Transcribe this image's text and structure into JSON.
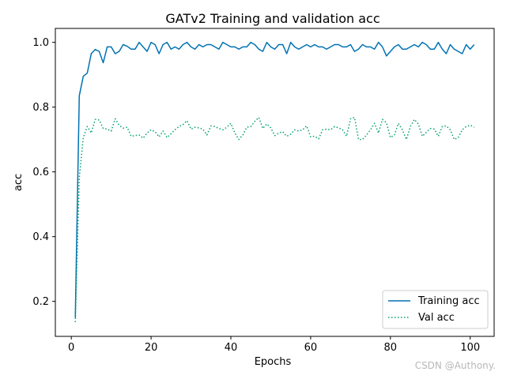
{
  "chart_data": {
    "type": "line",
    "title": "GATv2 Training and validation acc",
    "xlabel": "Epochs",
    "ylabel": "acc",
    "xlim": [
      -4,
      106
    ],
    "ylim": [
      0.092,
      1.043
    ],
    "xticks": [
      0,
      20,
      40,
      60,
      80,
      100
    ],
    "xtick_labels": [
      "0",
      "20",
      "40",
      "60",
      "80",
      "100"
    ],
    "yticks": [
      0.2,
      0.4,
      0.6,
      0.8,
      1.0
    ],
    "ytick_labels": [
      "0.2",
      "0.4",
      "0.6",
      "0.8",
      "1.0"
    ],
    "grid": false,
    "legend_position": "lower-right",
    "x_start": 1,
    "series": [
      {
        "name": "Training acc",
        "color": "#0072B2",
        "style": "solid",
        "values": [
          0.15,
          0.835,
          0.895,
          0.905,
          0.965,
          0.978,
          0.972,
          0.937,
          0.986,
          0.986,
          0.965,
          0.972,
          0.993,
          0.988,
          0.979,
          0.979,
          1.0,
          0.986,
          0.972,
          1.0,
          0.993,
          0.965,
          0.993,
          1.0,
          0.979,
          0.986,
          0.979,
          0.993,
          1.0,
          0.986,
          0.979,
          0.993,
          0.986,
          0.993,
          0.993,
          0.986,
          0.979,
          1.0,
          0.993,
          0.986,
          0.986,
          0.979,
          0.986,
          0.986,
          1.0,
          0.993,
          0.979,
          0.972,
          1.0,
          0.986,
          0.979,
          0.993,
          0.993,
          0.965,
          1.0,
          0.986,
          0.979,
          0.986,
          0.993,
          0.986,
          0.993,
          0.986,
          0.986,
          0.979,
          0.986,
          0.993,
          0.993,
          0.986,
          0.986,
          0.993,
          0.972,
          0.979,
          0.993,
          0.986,
          0.986,
          0.979,
          1.0,
          0.986,
          0.958,
          0.972,
          0.986,
          0.993,
          0.979,
          0.979,
          0.986,
          0.993,
          0.986,
          1.0,
          0.993,
          0.979,
          0.979,
          1.0,
          0.979,
          0.965,
          0.993,
          0.979,
          0.972,
          0.965,
          0.993,
          0.979,
          0.993
        ]
      },
      {
        "name": "Val acc",
        "color": "#009E73",
        "style": "dotted",
        "values": [
          0.136,
          0.58,
          0.706,
          0.74,
          0.72,
          0.762,
          0.76,
          0.734,
          0.732,
          0.726,
          0.764,
          0.744,
          0.735,
          0.738,
          0.71,
          0.712,
          0.714,
          0.704,
          0.72,
          0.73,
          0.724,
          0.708,
          0.726,
          0.706,
          0.718,
          0.73,
          0.74,
          0.746,
          0.758,
          0.732,
          0.738,
          0.736,
          0.732,
          0.714,
          0.742,
          0.74,
          0.734,
          0.73,
          0.738,
          0.75,
          0.72,
          0.7,
          0.714,
          0.738,
          0.74,
          0.756,
          0.768,
          0.734,
          0.748,
          0.736,
          0.712,
          0.72,
          0.724,
          0.71,
          0.716,
          0.73,
          0.726,
          0.73,
          0.742,
          0.708,
          0.71,
          0.702,
          0.73,
          0.732,
          0.73,
          0.74,
          0.736,
          0.73,
          0.71,
          0.764,
          0.768,
          0.7,
          0.7,
          0.714,
          0.73,
          0.75,
          0.72,
          0.762,
          0.752,
          0.706,
          0.714,
          0.75,
          0.73,
          0.7,
          0.74,
          0.762,
          0.748,
          0.71,
          0.722,
          0.734,
          0.732,
          0.71,
          0.74,
          0.742,
          0.73,
          0.7,
          0.706,
          0.73,
          0.74,
          0.744,
          0.738
        ]
      }
    ]
  },
  "watermark": "CSDN @Authony."
}
